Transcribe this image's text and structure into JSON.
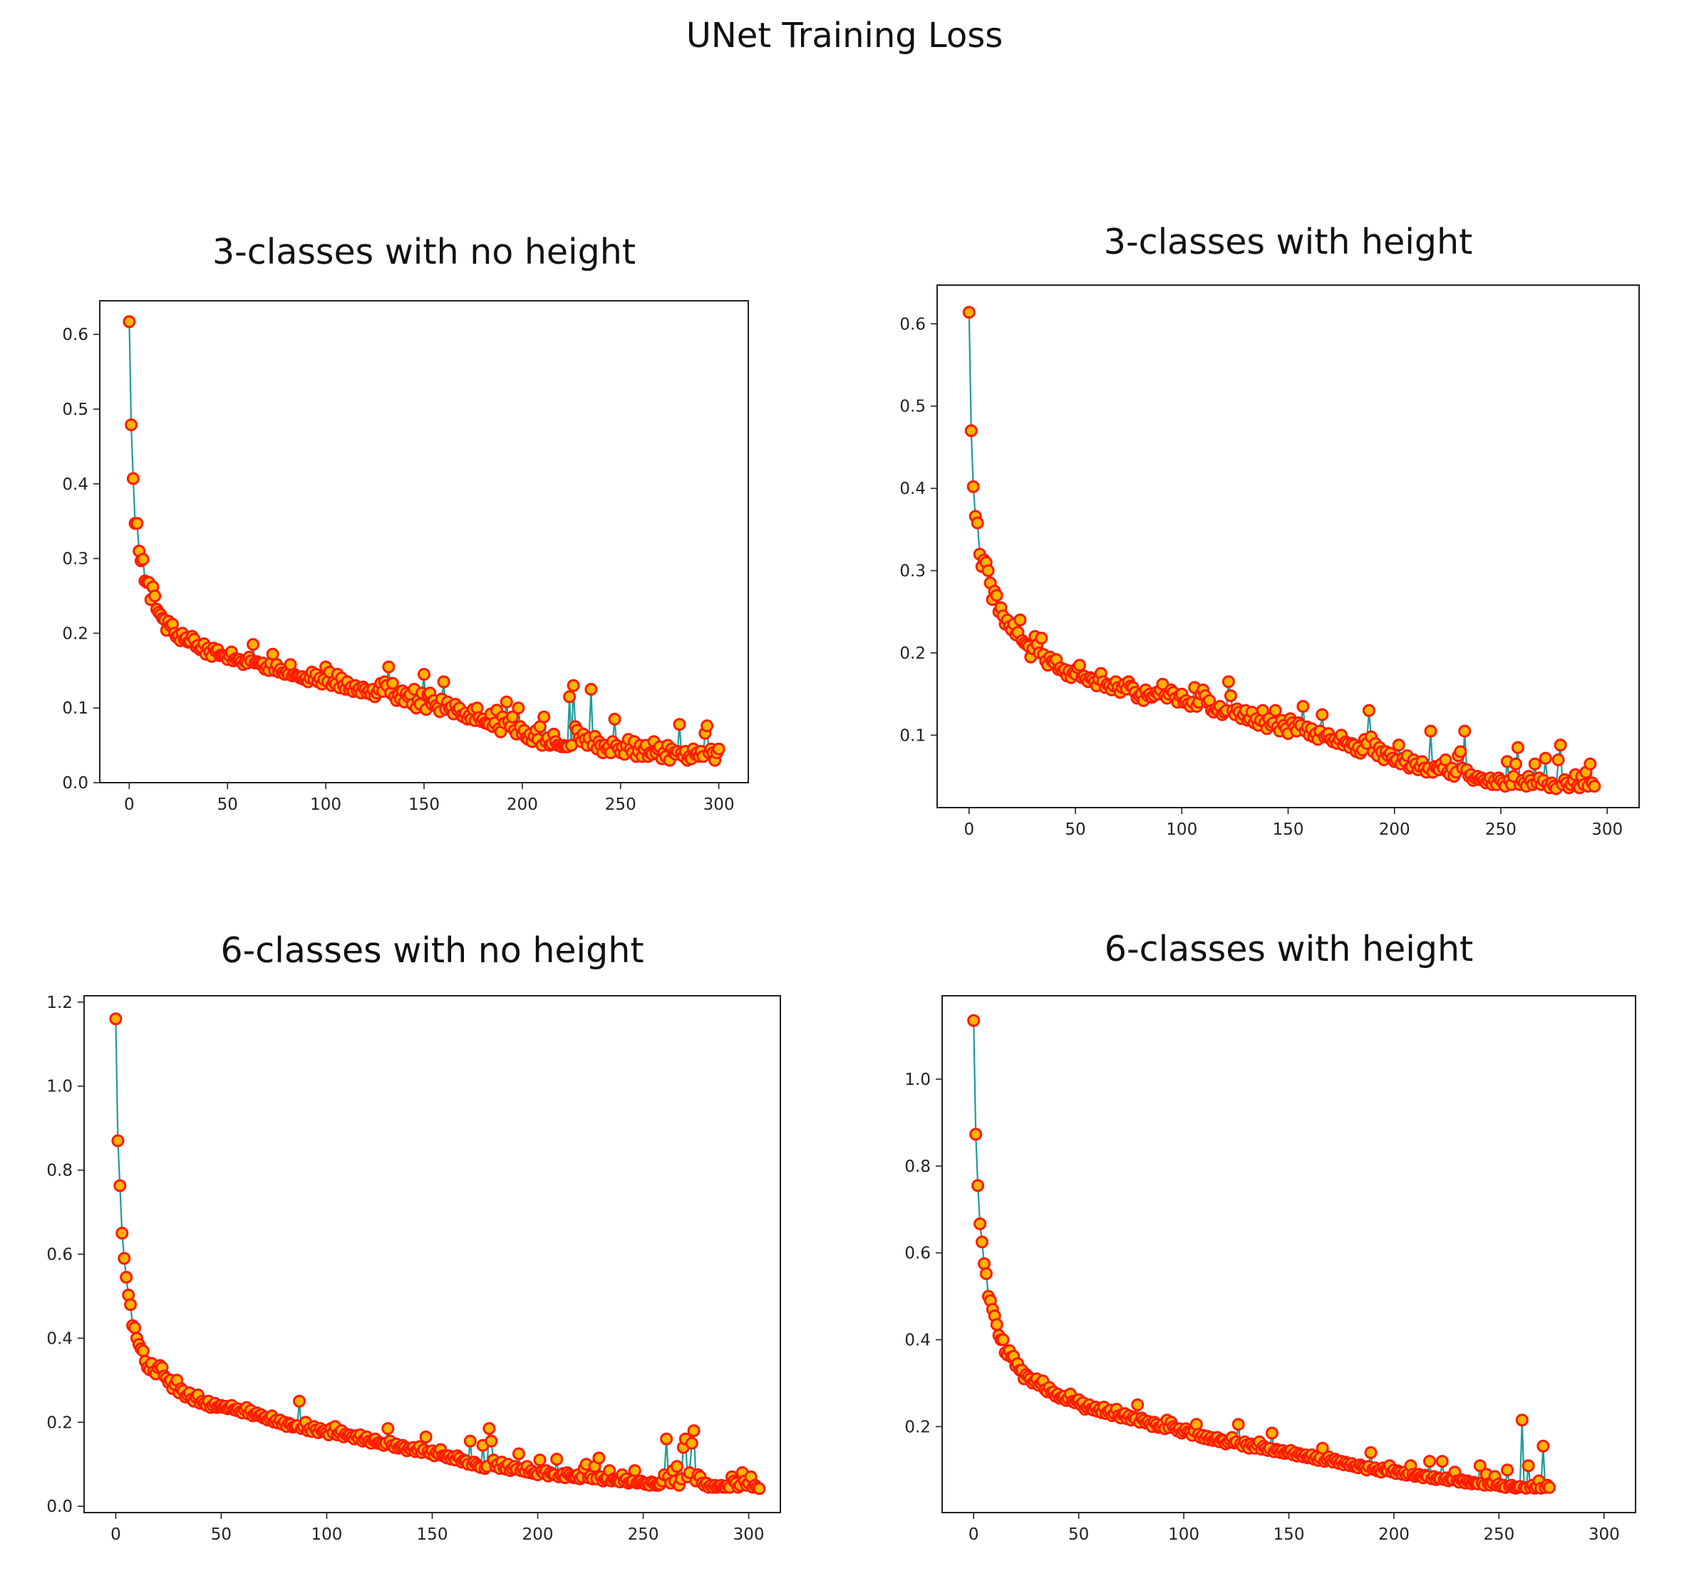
{
  "figure": {
    "title": "UNet Training Loss"
  },
  "style": {
    "line_color": "#1f9a9a",
    "marker_face": "#ffb400",
    "marker_edge": "#ff1a00"
  },
  "chart_data": [
    {
      "type": "line",
      "title": "3-classes with no height",
      "xlabel": "",
      "ylabel": "",
      "xlim": [
        -15,
        315
      ],
      "ylim": [
        0.0,
        0.645
      ],
      "xticks": [
        0,
        50,
        100,
        150,
        200,
        250,
        300
      ],
      "yticks": [
        0.0,
        0.1,
        0.2,
        0.3,
        0.4,
        0.5,
        0.6
      ],
      "ytick_decimals": 1,
      "x_start": 0,
      "y": [
        0.617,
        0.479,
        0.407,
        0.347,
        0.347,
        0.31,
        0.297,
        0.299,
        0.27,
        0.268,
        0.268,
        0.245,
        0.262,
        0.25,
        0.232,
        0.228,
        0.225,
        0.22,
        0.218,
        0.204,
        0.216,
        0.21,
        0.212,
        0.2,
        0.195,
        0.197,
        0.19,
        0.2,
        0.192,
        0.194,
        0.188,
        0.189,
        0.196,
        0.192,
        0.182,
        0.184,
        0.178,
        0.18,
        0.186,
        0.172,
        0.18,
        0.175,
        0.169,
        0.18,
        0.176,
        0.178,
        0.17,
        0.171,
        0.17,
        0.168,
        0.165,
        0.17,
        0.175,
        0.163,
        0.166,
        0.164,
        0.165,
        0.162,
        0.158,
        0.162,
        0.16,
        0.168,
        0.163,
        0.185,
        0.16,
        0.162,
        0.16,
        0.158,
        0.16,
        0.152,
        0.155,
        0.15,
        0.16,
        0.172,
        0.15,
        0.158,
        0.148,
        0.152,
        0.147,
        0.145,
        0.148,
        0.145,
        0.158,
        0.143,
        0.145,
        0.143,
        0.142,
        0.14,
        0.142,
        0.138,
        0.14,
        0.135,
        0.14,
        0.148,
        0.138,
        0.145,
        0.135,
        0.14,
        0.132,
        0.138,
        0.155,
        0.135,
        0.148,
        0.13,
        0.135,
        0.132,
        0.145,
        0.127,
        0.14,
        0.13,
        0.125,
        0.135,
        0.125,
        0.128,
        0.122,
        0.13,
        0.123,
        0.126,
        0.12,
        0.128,
        0.125,
        0.12,
        0.123,
        0.118,
        0.125,
        0.115,
        0.12,
        0.125,
        0.133,
        0.122,
        0.135,
        0.13,
        0.155,
        0.12,
        0.133,
        0.115,
        0.11,
        0.118,
        0.112,
        0.123,
        0.108,
        0.12,
        0.115,
        0.118,
        0.105,
        0.125,
        0.1,
        0.11,
        0.105,
        0.12,
        0.145,
        0.098,
        0.118,
        0.12,
        0.105,
        0.11,
        0.103,
        0.1,
        0.095,
        0.112,
        0.135,
        0.098,
        0.108,
        0.1,
        0.102,
        0.092,
        0.105,
        0.097,
        0.1,
        0.09,
        0.088,
        0.093,
        0.085,
        0.09,
        0.085,
        0.098,
        0.083,
        0.1,
        0.087,
        0.082,
        0.085,
        0.08,
        0.08,
        0.078,
        0.092,
        0.075,
        0.08,
        0.097,
        0.072,
        0.068,
        0.088,
        0.08,
        0.108,
        0.082,
        0.075,
        0.088,
        0.07,
        0.065,
        0.1,
        0.075,
        0.065,
        0.07,
        0.06,
        0.058,
        0.065,
        0.055,
        0.062,
        0.07,
        0.058,
        0.075,
        0.05,
        0.088,
        0.055,
        0.06,
        0.05,
        0.052,
        0.065,
        0.055,
        0.05,
        0.05,
        0.048,
        0.05,
        0.048,
        0.048,
        0.115,
        0.05,
        0.13,
        0.075,
        0.07,
        0.06,
        0.055,
        0.065,
        0.058,
        0.05,
        0.06,
        0.125,
        0.05,
        0.062,
        0.045,
        0.055,
        0.05,
        0.04,
        0.05,
        0.045,
        0.048,
        0.04,
        0.055,
        0.085,
        0.05,
        0.045,
        0.04,
        0.048,
        0.038,
        0.05,
        0.058,
        0.045,
        0.04,
        0.055,
        0.035,
        0.042,
        0.05,
        0.035,
        0.045,
        0.05,
        0.035,
        0.04,
        0.038,
        0.055,
        0.04,
        0.045,
        0.048,
        0.032,
        0.04,
        0.035,
        0.05,
        0.03,
        0.045,
        0.04,
        0.038,
        0.042,
        0.078,
        0.04,
        0.035,
        0.042,
        0.03,
        0.035,
        0.032,
        0.045,
        0.038,
        0.04,
        0.035,
        0.042,
        0.035,
        0.066,
        0.076,
        0.04,
        0.045,
        0.04,
        0.03,
        0.04,
        0.045
      ]
    },
    {
      "type": "line",
      "title": "3-classes with height",
      "xlabel": "",
      "ylabel": "",
      "xlim": [
        -15,
        315
      ],
      "ylim": [
        0.012,
        0.647
      ],
      "xticks": [
        0,
        50,
        100,
        150,
        200,
        250,
        300
      ],
      "yticks": [
        0.1,
        0.2,
        0.3,
        0.4,
        0.5,
        0.6
      ],
      "ytick_decimals": 1,
      "x_start": 0,
      "y": [
        0.614,
        0.47,
        0.402,
        0.366,
        0.358,
        0.32,
        0.305,
        0.313,
        0.31,
        0.3,
        0.285,
        0.265,
        0.275,
        0.27,
        0.25,
        0.255,
        0.245,
        0.235,
        0.24,
        0.232,
        0.228,
        0.235,
        0.222,
        0.225,
        0.24,
        0.215,
        0.212,
        0.21,
        0.208,
        0.195,
        0.205,
        0.22,
        0.21,
        0.2,
        0.218,
        0.198,
        0.19,
        0.185,
        0.195,
        0.19,
        0.188,
        0.192,
        0.18,
        0.182,
        0.178,
        0.18,
        0.172,
        0.178,
        0.17,
        0.176,
        0.174,
        0.182,
        0.185,
        0.17,
        0.172,
        0.168,
        0.165,
        0.17,
        0.168,
        0.165,
        0.16,
        0.168,
        0.175,
        0.165,
        0.158,
        0.162,
        0.16,
        0.155,
        0.16,
        0.165,
        0.158,
        0.152,
        0.158,
        0.162,
        0.156,
        0.165,
        0.16,
        0.158,
        0.152,
        0.145,
        0.148,
        0.15,
        0.142,
        0.155,
        0.148,
        0.15,
        0.146,
        0.148,
        0.152,
        0.15,
        0.155,
        0.162,
        0.148,
        0.145,
        0.15,
        0.155,
        0.152,
        0.145,
        0.14,
        0.148,
        0.15,
        0.14,
        0.142,
        0.138,
        0.135,
        0.14,
        0.158,
        0.135,
        0.14,
        0.15,
        0.155,
        0.148,
        0.14,
        0.142,
        0.13,
        0.128,
        0.132,
        0.13,
        0.135,
        0.125,
        0.128,
        0.13,
        0.165,
        0.148,
        0.13,
        0.125,
        0.132,
        0.128,
        0.12,
        0.125,
        0.13,
        0.118,
        0.12,
        0.128,
        0.115,
        0.12,
        0.112,
        0.118,
        0.13,
        0.115,
        0.108,
        0.12,
        0.112,
        0.115,
        0.13,
        0.11,
        0.105,
        0.118,
        0.112,
        0.108,
        0.102,
        0.12,
        0.115,
        0.11,
        0.105,
        0.115,
        0.112,
        0.135,
        0.105,
        0.11,
        0.1,
        0.108,
        0.098,
        0.102,
        0.095,
        0.105,
        0.125,
        0.098,
        0.1,
        0.102,
        0.095,
        0.092,
        0.095,
        0.09,
        0.095,
        0.1,
        0.088,
        0.092,
        0.09,
        0.085,
        0.09,
        0.088,
        0.08,
        0.085,
        0.078,
        0.082,
        0.095,
        0.09,
        0.13,
        0.098,
        0.08,
        0.09,
        0.075,
        0.085,
        0.08,
        0.07,
        0.08,
        0.075,
        0.078,
        0.072,
        0.068,
        0.07,
        0.088,
        0.065,
        0.072,
        0.068,
        0.075,
        0.06,
        0.062,
        0.07,
        0.065,
        0.058,
        0.062,
        0.068,
        0.06,
        0.055,
        0.06,
        0.105,
        0.055,
        0.062,
        0.06,
        0.058,
        0.065,
        0.06,
        0.07,
        0.055,
        0.052,
        0.06,
        0.05,
        0.055,
        0.075,
        0.08,
        0.06,
        0.105,
        0.058,
        0.05,
        0.052,
        0.045,
        0.048,
        0.05,
        0.046,
        0.048,
        0.045,
        0.042,
        0.045,
        0.048,
        0.04,
        0.045,
        0.04,
        0.048,
        0.045,
        0.042,
        0.038,
        0.068,
        0.045,
        0.04,
        0.05,
        0.065,
        0.085,
        0.04,
        0.045,
        0.042,
        0.038,
        0.05,
        0.045,
        0.04,
        0.065,
        0.042,
        0.048,
        0.04,
        0.045,
        0.072,
        0.04,
        0.036,
        0.042,
        0.038,
        0.035,
        0.07,
        0.088,
        0.04,
        0.046,
        0.042,
        0.036,
        0.04,
        0.045,
        0.052,
        0.038,
        0.036,
        0.05,
        0.04,
        0.055,
        0.038,
        0.065,
        0.042,
        0.038
      ]
    },
    {
      "type": "line",
      "title": "6-classes with no height",
      "xlabel": "",
      "ylabel": "",
      "xlim": [
        -15,
        315
      ],
      "ylim": [
        -0.015,
        1.215
      ],
      "xticks": [
        0,
        50,
        100,
        150,
        200,
        250,
        300
      ],
      "yticks": [
        0.0,
        0.2,
        0.4,
        0.6,
        0.8,
        1.0,
        1.2
      ],
      "ytick_decimals": 1,
      "x_start": 0,
      "y": [
        1.16,
        0.87,
        0.763,
        0.65,
        0.59,
        0.545,
        0.503,
        0.48,
        0.43,
        0.425,
        0.4,
        0.385,
        0.375,
        0.37,
        0.345,
        0.33,
        0.325,
        0.34,
        0.32,
        0.315,
        0.33,
        0.335,
        0.33,
        0.31,
        0.305,
        0.295,
        0.3,
        0.28,
        0.29,
        0.3,
        0.27,
        0.28,
        0.275,
        0.26,
        0.265,
        0.27,
        0.255,
        0.25,
        0.26,
        0.265,
        0.245,
        0.25,
        0.245,
        0.24,
        0.25,
        0.235,
        0.24,
        0.245,
        0.235,
        0.238,
        0.24,
        0.235,
        0.238,
        0.232,
        0.235,
        0.24,
        0.23,
        0.228,
        0.232,
        0.225,
        0.222,
        0.23,
        0.235,
        0.22,
        0.228,
        0.215,
        0.22,
        0.222,
        0.215,
        0.218,
        0.21,
        0.212,
        0.205,
        0.21,
        0.215,
        0.2,
        0.205,
        0.198,
        0.205,
        0.195,
        0.2,
        0.19,
        0.198,
        0.195,
        0.188,
        0.19,
        0.192,
        0.25,
        0.185,
        0.19,
        0.2,
        0.18,
        0.185,
        0.178,
        0.19,
        0.182,
        0.175,
        0.185,
        0.178,
        0.18,
        0.175,
        0.17,
        0.185,
        0.175,
        0.19,
        0.17,
        0.175,
        0.18,
        0.165,
        0.172,
        0.168,
        0.17,
        0.165,
        0.16,
        0.168,
        0.162,
        0.17,
        0.155,
        0.16,
        0.165,
        0.155,
        0.15,
        0.158,
        0.16,
        0.15,
        0.152,
        0.148,
        0.145,
        0.15,
        0.185,
        0.155,
        0.145,
        0.14,
        0.148,
        0.138,
        0.142,
        0.145,
        0.14,
        0.132,
        0.138,
        0.135,
        0.14,
        0.13,
        0.135,
        0.142,
        0.128,
        0.135,
        0.165,
        0.13,
        0.125,
        0.132,
        0.12,
        0.128,
        0.125,
        0.135,
        0.12,
        0.118,
        0.115,
        0.12,
        0.112,
        0.118,
        0.11,
        0.12,
        0.115,
        0.105,
        0.11,
        0.108,
        0.1,
        0.155,
        0.098,
        0.105,
        0.1,
        0.095,
        0.092,
        0.145,
        0.09,
        0.095,
        0.185,
        0.155,
        0.11,
        0.095,
        0.1,
        0.09,
        0.105,
        0.092,
        0.088,
        0.1,
        0.085,
        0.09,
        0.095,
        0.088,
        0.125,
        0.085,
        0.09,
        0.082,
        0.095,
        0.08,
        0.085,
        0.078,
        0.08,
        0.075,
        0.11,
        0.082,
        0.078,
        0.085,
        0.072,
        0.08,
        0.076,
        0.075,
        0.112,
        0.07,
        0.075,
        0.078,
        0.068,
        0.08,
        0.075,
        0.07,
        0.068,
        0.07,
        0.075,
        0.065,
        0.07,
        0.09,
        0.1,
        0.068,
        0.072,
        0.065,
        0.095,
        0.065,
        0.115,
        0.07,
        0.06,
        0.065,
        0.068,
        0.085,
        0.06,
        0.065,
        0.062,
        0.06,
        0.058,
        0.075,
        0.06,
        0.065,
        0.055,
        0.058,
        0.06,
        0.085,
        0.055,
        0.058,
        0.06,
        0.055,
        0.052,
        0.055,
        0.05,
        0.058,
        0.055,
        0.05,
        0.05,
        0.052,
        0.06,
        0.075,
        0.16,
        0.07,
        0.055,
        0.085,
        0.06,
        0.095,
        0.05,
        0.065,
        0.14,
        0.16,
        0.07,
        0.08,
        0.15,
        0.18,
        0.06,
        0.075,
        0.07,
        0.055,
        0.05,
        0.055,
        0.045,
        0.05,
        0.045,
        0.05,
        0.045,
        0.048,
        0.05,
        0.045,
        0.045,
        0.05,
        0.045,
        0.07,
        0.06,
        0.055,
        0.045,
        0.05,
        0.08,
        0.06,
        0.05,
        0.055,
        0.07,
        0.045,
        0.05,
        0.045,
        0.042
      ]
    },
    {
      "type": "line",
      "title": "6-classes with height",
      "xlabel": "",
      "ylabel": "",
      "xlim": [
        -15,
        315
      ],
      "ylim": [
        0.002,
        1.192
      ],
      "xticks": [
        0,
        50,
        100,
        150,
        200,
        250,
        300
      ],
      "yticks": [
        0.2,
        0.4,
        0.6,
        0.8,
        1.0
      ],
      "ytick_decimals": 1,
      "x_start": 0,
      "y": [
        1.135,
        0.873,
        0.755,
        0.667,
        0.625,
        0.575,
        0.552,
        0.5,
        0.49,
        0.47,
        0.455,
        0.435,
        0.41,
        0.4,
        0.4,
        0.37,
        0.365,
        0.375,
        0.36,
        0.362,
        0.34,
        0.345,
        0.33,
        0.33,
        0.31,
        0.32,
        0.315,
        0.31,
        0.3,
        0.305,
        0.31,
        0.295,
        0.3,
        0.305,
        0.285,
        0.28,
        0.29,
        0.278,
        0.28,
        0.27,
        0.275,
        0.265,
        0.268,
        0.27,
        0.26,
        0.265,
        0.275,
        0.258,
        0.255,
        0.26,
        0.262,
        0.25,
        0.255,
        0.24,
        0.245,
        0.25,
        0.24,
        0.238,
        0.245,
        0.235,
        0.24,
        0.232,
        0.245,
        0.23,
        0.235,
        0.238,
        0.225,
        0.23,
        0.24,
        0.225,
        0.22,
        0.228,
        0.23,
        0.218,
        0.225,
        0.215,
        0.222,
        0.218,
        0.25,
        0.21,
        0.22,
        0.215,
        0.208,
        0.212,
        0.205,
        0.2,
        0.21,
        0.205,
        0.198,
        0.2,
        0.205,
        0.195,
        0.215,
        0.198,
        0.21,
        0.2,
        0.195,
        0.19,
        0.195,
        0.185,
        0.19,
        0.195,
        0.188,
        0.185,
        0.18,
        0.19,
        0.205,
        0.182,
        0.175,
        0.18,
        0.172,
        0.178,
        0.17,
        0.175,
        0.168,
        0.172,
        0.175,
        0.165,
        0.17,
        0.168,
        0.16,
        0.165,
        0.17,
        0.175,
        0.162,
        0.165,
        0.205,
        0.16,
        0.155,
        0.165,
        0.158,
        0.15,
        0.16,
        0.155,
        0.15,
        0.158,
        0.165,
        0.148,
        0.155,
        0.15,
        0.145,
        0.15,
        0.185,
        0.142,
        0.148,
        0.145,
        0.14,
        0.145,
        0.138,
        0.142,
        0.14,
        0.145,
        0.135,
        0.14,
        0.132,
        0.138,
        0.135,
        0.13,
        0.135,
        0.128,
        0.13,
        0.135,
        0.125,
        0.13,
        0.122,
        0.128,
        0.15,
        0.12,
        0.125,
        0.13,
        0.122,
        0.118,
        0.125,
        0.12,
        0.115,
        0.12,
        0.112,
        0.118,
        0.115,
        0.11,
        0.115,
        0.108,
        0.11,
        0.105,
        0.112,
        0.108,
        0.105,
        0.1,
        0.108,
        0.14,
        0.102,
        0.105,
        0.098,
        0.1,
        0.095,
        0.105,
        0.1,
        0.098,
        0.11,
        0.095,
        0.1,
        0.092,
        0.098,
        0.095,
        0.09,
        0.095,
        0.088,
        0.092,
        0.11,
        0.09,
        0.085,
        0.088,
        0.09,
        0.085,
        0.082,
        0.088,
        0.085,
        0.12,
        0.08,
        0.085,
        0.078,
        0.082,
        0.08,
        0.12,
        0.078,
        0.082,
        0.075,
        0.08,
        0.078,
        0.095,
        0.075,
        0.072,
        0.078,
        0.075,
        0.07,
        0.075,
        0.072,
        0.068,
        0.072,
        0.07,
        0.068,
        0.11,
        0.07,
        0.065,
        0.09,
        0.068,
        0.065,
        0.07,
        0.085,
        0.065,
        0.068,
        0.062,
        0.065,
        0.06,
        0.1,
        0.062,
        0.065,
        0.06,
        0.058,
        0.06,
        0.062,
        0.215,
        0.06,
        0.058,
        0.11,
        0.06,
        0.065,
        0.058,
        0.062,
        0.075,
        0.058,
        0.155,
        0.06,
        0.065,
        0.06
      ]
    }
  ]
}
